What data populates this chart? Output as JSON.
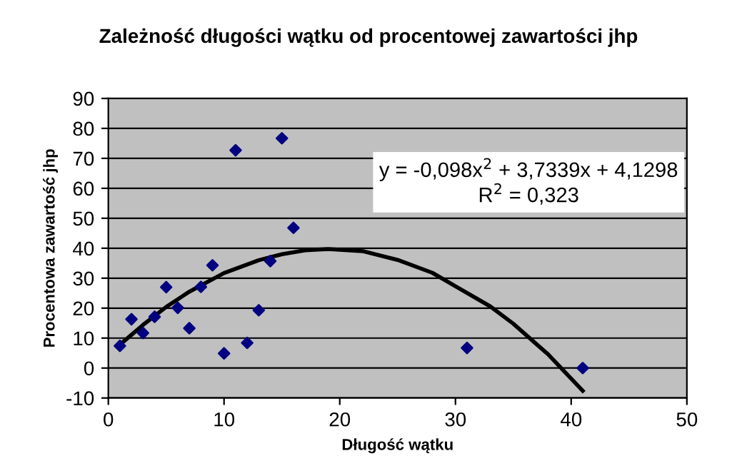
{
  "chart_data": {
    "type": "scatter",
    "title": "Zależność długości wątku od procentowej zawartości jhp",
    "xlabel": "Długość wątku",
    "ylabel": "Procentowa zawartość jhp",
    "series": [
      {
        "color": "#000080",
        "marker": "diamond",
        "x": [
          1,
          2,
          3,
          4,
          5,
          6,
          7,
          8,
          9,
          10,
          11,
          12,
          13,
          14,
          15,
          16,
          31,
          41
        ],
        "values": [
          7.4,
          16.3,
          11.7,
          17.1,
          27,
          20.1,
          13.3,
          27.1,
          34.3,
          4.9,
          72.7,
          8.4,
          19.3,
          35.7,
          76.7,
          46.8,
          6.7,
          0
        ]
      },
      {
        "type": "line",
        "color": "#000000",
        "marker": "none",
        "line_style": "solid",
        "x": [
          1,
          3,
          5,
          7,
          10,
          13,
          15,
          17,
          19,
          22,
          25,
          28,
          30,
          33,
          35,
          38,
          41
        ],
        "values": [
          7.8,
          14.4,
          20.4,
          25.5,
          31.7,
          36,
          38,
          39.3,
          39.7,
          39,
          36.1,
          31.8,
          27.3,
          20.6,
          14.8,
          4.6,
          -7.6
        ]
      }
    ],
    "annotations": [
      "y = -0,098x$^{2}$ + 3,7339x + 4,1298\nR$^{2}$ = 0,323"
    ],
    "xlim": [
      0,
      50
    ],
    "xticks": [
      0,
      10,
      20,
      30,
      40,
      50
    ],
    "ylim": [
      -10,
      90
    ],
    "yticks": [
      -10,
      0,
      10,
      20,
      30,
      40,
      50,
      60,
      70,
      80,
      90
    ],
    "grid": "y",
    "legend": false
  }
}
